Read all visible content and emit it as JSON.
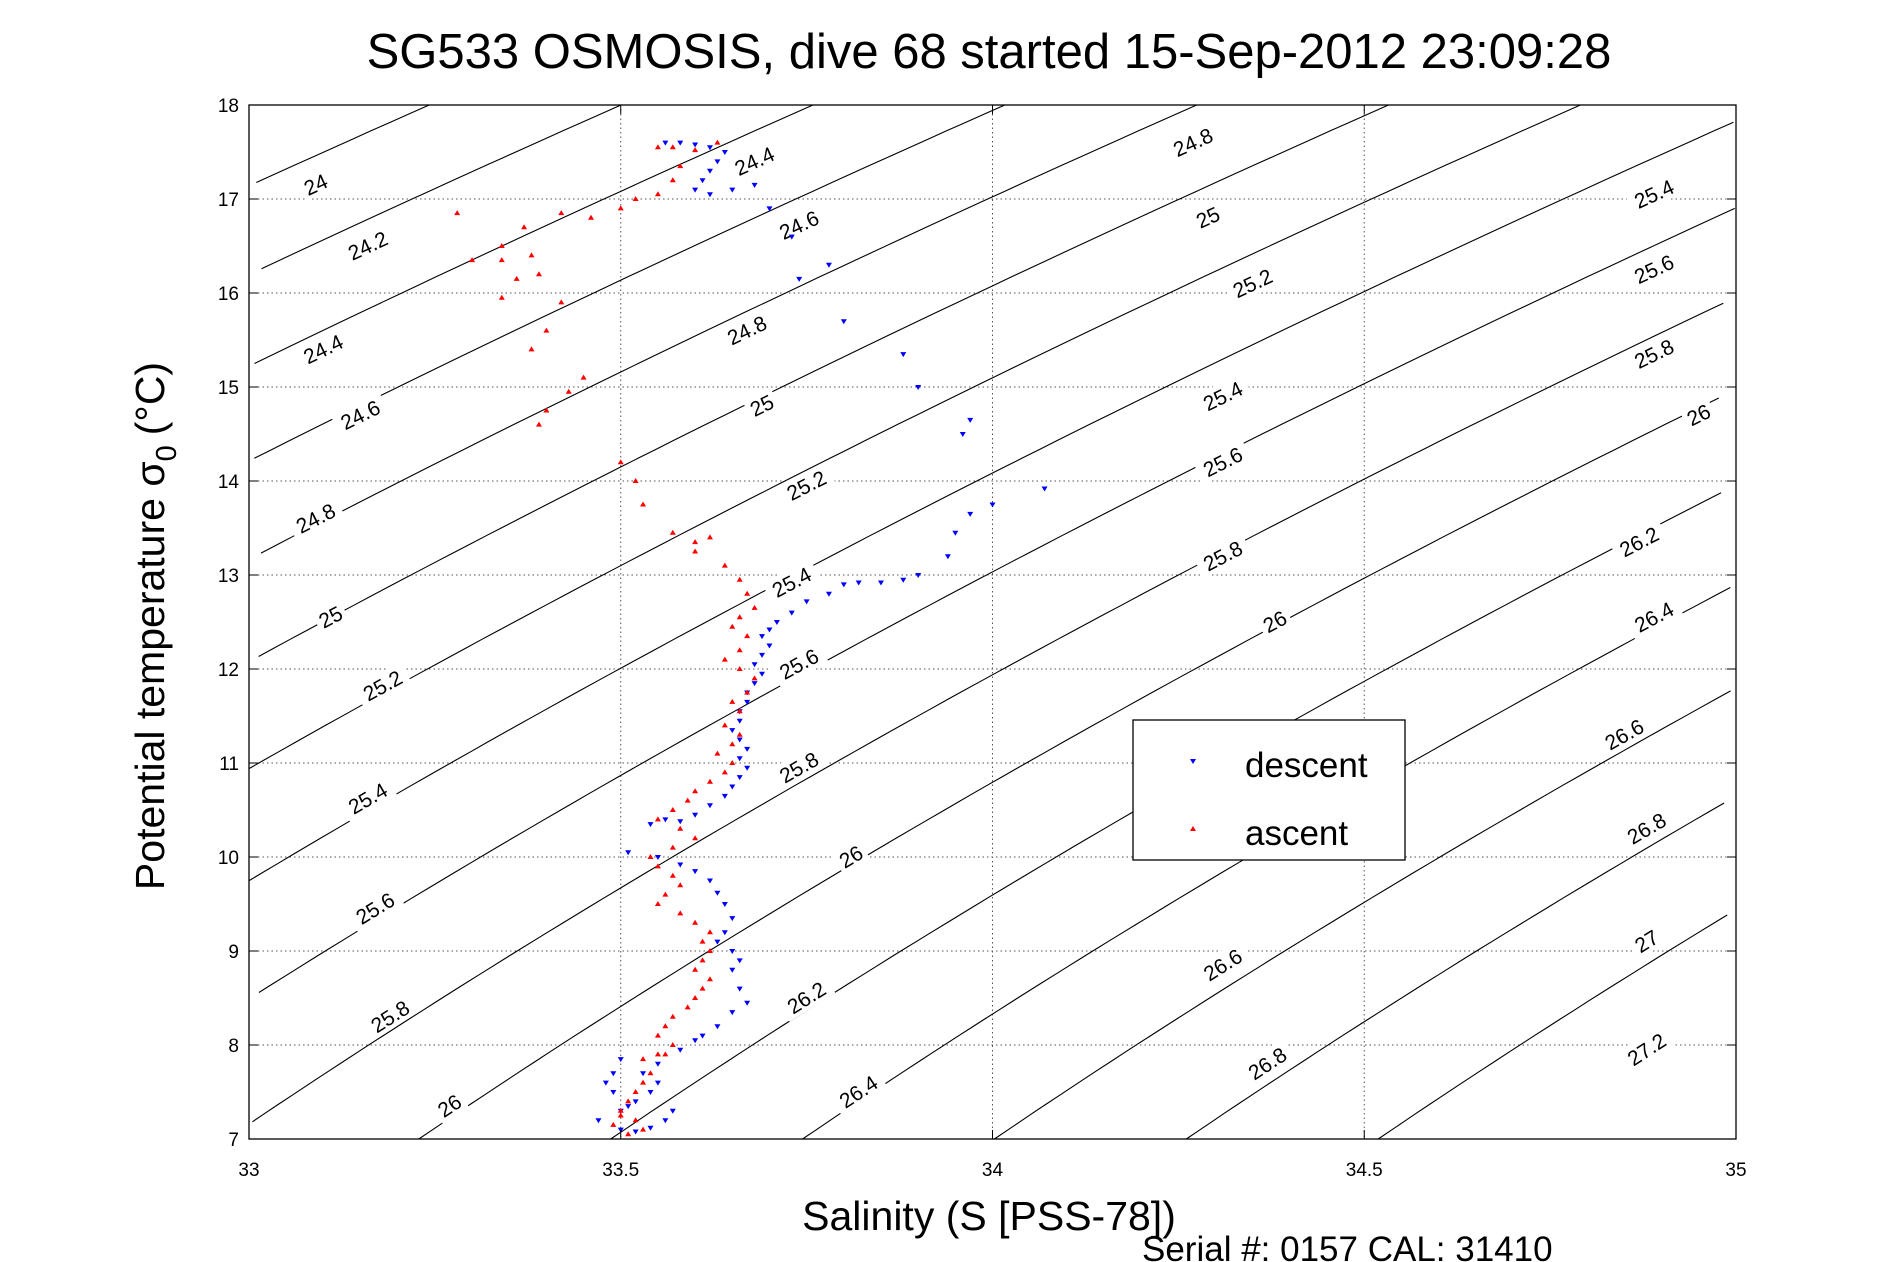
{
  "chart_data": {
    "type": "scatter",
    "title": "SG533 OSMOSIS, dive 68 started 15-Sep-2012 23:09:28",
    "xlabel": "Salinity (S [PSS-78])",
    "ylabel_main": "Potential temperature σ",
    "ylabel_sub": "0",
    "ylabel_unit": "(°C)",
    "xlim": [
      33,
      35
    ],
    "ylim": [
      7,
      18
    ],
    "x_ticks": [
      "33",
      "33.5",
      "34",
      "34.5",
      "35"
    ],
    "y_ticks": [
      "7",
      "8",
      "9",
      "10",
      "11",
      "12",
      "13",
      "14",
      "15",
      "16",
      "17",
      "18"
    ],
    "grid": true,
    "legend_position": "center-right",
    "footer": "Serial #: 0157  CAL: 31410",
    "contour_label_values": [
      "24",
      "24.2",
      "24.4",
      "24.6",
      "24.8",
      "25",
      "25.2",
      "25.4",
      "25.6",
      "25.8",
      "26",
      "26.2",
      "26.4",
      "26.6",
      "26.8",
      "27",
      "27.2"
    ],
    "contour_labels": [
      {
        "text": "24",
        "x": 33.09,
        "y": 17.15
      },
      {
        "text": "24.2",
        "x": 33.16,
        "y": 16.5
      },
      {
        "text": "24.4",
        "x": 33.1,
        "y": 15.4
      },
      {
        "text": "24.6",
        "x": 33.15,
        "y": 14.7
      },
      {
        "text": "24.8",
        "x": 33.09,
        "y": 13.6
      },
      {
        "text": "25",
        "x": 33.11,
        "y": 12.55
      },
      {
        "text": "25.2",
        "x": 33.18,
        "y": 11.82
      },
      {
        "text": "25.4",
        "x": 33.16,
        "y": 10.62
      },
      {
        "text": "25.6",
        "x": 33.17,
        "y": 9.45
      },
      {
        "text": "25.8",
        "x": 33.19,
        "y": 8.3
      },
      {
        "text": "26",
        "x": 33.27,
        "y": 7.35
      },
      {
        "text": "24.4",
        "x": 33.68,
        "y": 17.4
      },
      {
        "text": "24.6",
        "x": 33.74,
        "y": 16.72
      },
      {
        "text": "24.8",
        "x": 33.67,
        "y": 15.6
      },
      {
        "text": "25",
        "x": 33.69,
        "y": 14.8
      },
      {
        "text": "25.2",
        "x": 33.75,
        "y": 13.95
      },
      {
        "text": "25.4",
        "x": 33.73,
        "y": 12.92
      },
      {
        "text": "25.6",
        "x": 33.74,
        "y": 12.05
      },
      {
        "text": "25.8",
        "x": 33.74,
        "y": 10.95
      },
      {
        "text": "26",
        "x": 33.81,
        "y": 10.0
      },
      {
        "text": "26.2",
        "x": 33.75,
        "y": 8.5
      },
      {
        "text": "26.4",
        "x": 33.82,
        "y": 7.5
      },
      {
        "text": "24.8",
        "x": 34.27,
        "y": 17.6
      },
      {
        "text": "25",
        "x": 34.29,
        "y": 16.8
      },
      {
        "text": "25.2",
        "x": 34.35,
        "y": 16.1
      },
      {
        "text": "25.4",
        "x": 34.31,
        "y": 14.9
      },
      {
        "text": "25.6",
        "x": 34.31,
        "y": 14.2
      },
      {
        "text": "25.8",
        "x": 34.31,
        "y": 13.2
      },
      {
        "text": "26",
        "x": 34.38,
        "y": 12.5
      },
      {
        "text": "26.6",
        "x": 34.31,
        "y": 8.85
      },
      {
        "text": "26.8",
        "x": 34.37,
        "y": 7.8
      },
      {
        "text": "25.4",
        "x": 34.89,
        "y": 17.05
      },
      {
        "text": "25.6",
        "x": 34.89,
        "y": 16.25
      },
      {
        "text": "25.8",
        "x": 34.89,
        "y": 15.35
      },
      {
        "text": "26",
        "x": 34.95,
        "y": 14.7
      },
      {
        "text": "26.2",
        "x": 34.87,
        "y": 13.35
      },
      {
        "text": "26.4",
        "x": 34.89,
        "y": 12.55
      },
      {
        "text": "26.6",
        "x": 34.85,
        "y": 11.3
      },
      {
        "text": "26.8",
        "x": 34.88,
        "y": 10.3
      },
      {
        "text": "27",
        "x": 34.88,
        "y": 9.1
      },
      {
        "text": "27.2",
        "x": 34.88,
        "y": 7.95
      }
    ],
    "series": [
      {
        "name": "descent",
        "color": "#0000ff",
        "marker": "triangle-down",
        "points": [
          [
            33.56,
            17.6
          ],
          [
            33.58,
            17.6
          ],
          [
            33.6,
            17.58
          ],
          [
            33.62,
            17.55
          ],
          [
            33.64,
            17.5
          ],
          [
            33.63,
            17.4
          ],
          [
            33.62,
            17.3
          ],
          [
            33.61,
            17.2
          ],
          [
            33.6,
            17.1
          ],
          [
            33.62,
            17.05
          ],
          [
            33.65,
            17.1
          ],
          [
            33.68,
            17.15
          ],
          [
            33.7,
            16.9
          ],
          [
            33.73,
            16.6
          ],
          [
            33.74,
            16.15
          ],
          [
            33.78,
            16.3
          ],
          [
            33.8,
            15.7
          ],
          [
            33.88,
            15.35
          ],
          [
            33.9,
            15.0
          ],
          [
            33.97,
            14.65
          ],
          [
            33.96,
            14.5
          ],
          [
            34.0,
            13.75
          ],
          [
            33.97,
            13.65
          ],
          [
            34.07,
            13.92
          ],
          [
            33.95,
            13.45
          ],
          [
            33.94,
            13.2
          ],
          [
            33.9,
            13.0
          ],
          [
            33.88,
            12.95
          ],
          [
            33.85,
            12.92
          ],
          [
            33.82,
            12.92
          ],
          [
            33.8,
            12.9
          ],
          [
            33.78,
            12.8
          ],
          [
            33.75,
            12.72
          ],
          [
            33.73,
            12.6
          ],
          [
            33.71,
            12.5
          ],
          [
            33.7,
            12.42
          ],
          [
            33.69,
            12.35
          ],
          [
            33.7,
            12.25
          ],
          [
            33.69,
            12.15
          ],
          [
            33.68,
            12.05
          ],
          [
            33.69,
            11.95
          ],
          [
            33.68,
            11.85
          ],
          [
            33.67,
            11.75
          ],
          [
            33.67,
            11.65
          ],
          [
            33.66,
            11.55
          ],
          [
            33.66,
            11.45
          ],
          [
            33.65,
            11.35
          ],
          [
            33.66,
            11.25
          ],
          [
            33.67,
            11.15
          ],
          [
            33.66,
            11.05
          ],
          [
            33.67,
            10.95
          ],
          [
            33.66,
            10.85
          ],
          [
            33.65,
            10.75
          ],
          [
            33.64,
            10.65
          ],
          [
            33.62,
            10.55
          ],
          [
            33.6,
            10.45
          ],
          [
            33.58,
            10.38
          ],
          [
            33.56,
            10.4
          ],
          [
            33.54,
            10.35
          ],
          [
            33.51,
            10.05
          ],
          [
            33.55,
            10.0
          ],
          [
            33.58,
            9.92
          ],
          [
            33.6,
            9.85
          ],
          [
            33.62,
            9.75
          ],
          [
            33.63,
            9.62
          ],
          [
            33.64,
            9.5
          ],
          [
            33.65,
            9.35
          ],
          [
            33.64,
            9.2
          ],
          [
            33.63,
            9.1
          ],
          [
            33.65,
            9.0
          ],
          [
            33.66,
            8.9
          ],
          [
            33.65,
            8.8
          ],
          [
            33.66,
            8.6
          ],
          [
            33.67,
            8.45
          ],
          [
            33.65,
            8.35
          ],
          [
            33.63,
            8.2
          ],
          [
            33.61,
            8.1
          ],
          [
            33.6,
            8.05
          ],
          [
            33.58,
            7.95
          ],
          [
            33.55,
            7.8
          ],
          [
            33.53,
            7.7
          ],
          [
            33.55,
            7.6
          ],
          [
            33.54,
            7.5
          ],
          [
            33.52,
            7.4
          ],
          [
            33.51,
            7.35
          ],
          [
            33.5,
            7.3
          ],
          [
            33.49,
            7.5
          ],
          [
            33.48,
            7.6
          ],
          [
            33.47,
            7.2
          ],
          [
            33.5,
            7.1
          ],
          [
            33.52,
            7.08
          ],
          [
            33.54,
            7.12
          ],
          [
            33.56,
            7.2
          ],
          [
            33.57,
            7.3
          ],
          [
            33.49,
            7.7
          ],
          [
            33.5,
            7.85
          ]
        ]
      },
      {
        "name": "ascent",
        "color": "#ff0000",
        "marker": "triangle-up",
        "points": [
          [
            33.55,
            17.55
          ],
          [
            33.57,
            17.55
          ],
          [
            33.6,
            17.52
          ],
          [
            33.63,
            17.6
          ],
          [
            33.58,
            17.35
          ],
          [
            33.57,
            17.2
          ],
          [
            33.55,
            17.05
          ],
          [
            33.52,
            17.0
          ],
          [
            33.5,
            16.9
          ],
          [
            33.46,
            16.8
          ],
          [
            33.42,
            16.85
          ],
          [
            33.37,
            16.7
          ],
          [
            33.34,
            16.5
          ],
          [
            33.3,
            16.35
          ],
          [
            33.28,
            16.85
          ],
          [
            33.34,
            16.35
          ],
          [
            33.38,
            16.4
          ],
          [
            33.36,
            16.15
          ],
          [
            33.34,
            15.95
          ],
          [
            33.39,
            16.2
          ],
          [
            33.42,
            15.9
          ],
          [
            33.4,
            15.6
          ],
          [
            33.38,
            15.4
          ],
          [
            33.45,
            15.1
          ],
          [
            33.43,
            14.95
          ],
          [
            33.4,
            14.75
          ],
          [
            33.39,
            14.6
          ],
          [
            33.5,
            14.2
          ],
          [
            33.52,
            14.0
          ],
          [
            33.53,
            13.75
          ],
          [
            33.57,
            13.45
          ],
          [
            33.6,
            13.35
          ],
          [
            33.62,
            13.4
          ],
          [
            33.6,
            13.25
          ],
          [
            33.64,
            13.1
          ],
          [
            33.66,
            12.95
          ],
          [
            33.67,
            12.8
          ],
          [
            33.68,
            12.65
          ],
          [
            33.66,
            12.55
          ],
          [
            33.65,
            12.45
          ],
          [
            33.67,
            12.35
          ],
          [
            33.66,
            12.2
          ],
          [
            33.64,
            12.1
          ],
          [
            33.66,
            12.0
          ],
          [
            33.68,
            11.9
          ],
          [
            33.67,
            11.75
          ],
          [
            33.65,
            11.65
          ],
          [
            33.66,
            11.55
          ],
          [
            33.64,
            11.4
          ],
          [
            33.66,
            11.3
          ],
          [
            33.65,
            11.2
          ],
          [
            33.63,
            11.1
          ],
          [
            33.65,
            11.0
          ],
          [
            33.64,
            10.9
          ],
          [
            33.62,
            10.8
          ],
          [
            33.6,
            10.7
          ],
          [
            33.59,
            10.6
          ],
          [
            33.57,
            10.5
          ],
          [
            33.55,
            10.4
          ],
          [
            33.58,
            10.3
          ],
          [
            33.6,
            10.2
          ],
          [
            33.57,
            10.1
          ],
          [
            33.54,
            10.0
          ],
          [
            33.55,
            9.9
          ],
          [
            33.57,
            9.8
          ],
          [
            33.58,
            9.7
          ],
          [
            33.56,
            9.6
          ],
          [
            33.55,
            9.5
          ],
          [
            33.58,
            9.4
          ],
          [
            33.6,
            9.3
          ],
          [
            33.62,
            9.2
          ],
          [
            33.61,
            9.1
          ],
          [
            33.62,
            9.0
          ],
          [
            33.61,
            8.9
          ],
          [
            33.6,
            8.8
          ],
          [
            33.62,
            8.7
          ],
          [
            33.61,
            8.6
          ],
          [
            33.6,
            8.5
          ],
          [
            33.59,
            8.4
          ],
          [
            33.57,
            8.3
          ],
          [
            33.56,
            8.2
          ],
          [
            33.55,
            8.1
          ],
          [
            33.57,
            8.0
          ],
          [
            33.55,
            7.9
          ],
          [
            33.53,
            7.85
          ],
          [
            33.54,
            7.7
          ],
          [
            33.53,
            7.6
          ],
          [
            33.52,
            7.5
          ],
          [
            33.51,
            7.4
          ],
          [
            33.5,
            7.3
          ],
          [
            33.52,
            7.2
          ],
          [
            33.53,
            7.1
          ],
          [
            33.51,
            7.05
          ],
          [
            33.49,
            7.15
          ],
          [
            33.5,
            7.25
          ],
          [
            33.56,
            7.9
          ]
        ]
      }
    ]
  }
}
